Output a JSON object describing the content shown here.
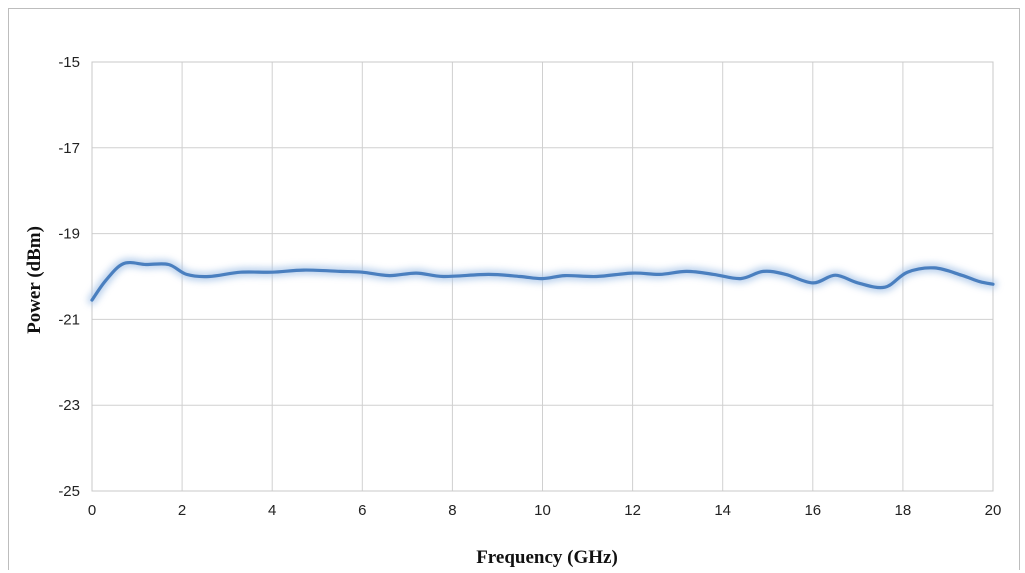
{
  "chart_data": {
    "type": "line",
    "title": "",
    "xlabel": "Frequency (GHz)",
    "ylabel": "Power (dBm)",
    "xlim": [
      0,
      20
    ],
    "ylim": [
      -25,
      -15
    ],
    "xticks": [
      0,
      2,
      4,
      6,
      8,
      10,
      12,
      14,
      16,
      18,
      20
    ],
    "yticks": [
      -25,
      -23,
      -21,
      -19,
      -17,
      -15
    ],
    "xtick_labels": [
      "0",
      "2",
      "4",
      "6",
      "8",
      "10",
      "12",
      "14",
      "16",
      "18",
      "20"
    ],
    "ytick_labels": [
      "-25",
      "-23",
      "-21",
      "-19",
      "-17",
      "-15"
    ],
    "grid": true,
    "legend": "none",
    "series_color": "#4a7fbf",
    "series": [
      {
        "x": [
          0,
          0.3,
          0.7,
          1.2,
          1.7,
          2.1,
          2.6,
          3.3,
          4.0,
          4.7,
          5.5,
          6.0,
          6.6,
          7.2,
          7.8,
          8.8,
          9.5,
          10.0,
          10.5,
          11.2,
          12.0,
          12.6,
          13.2,
          13.8,
          14.4,
          14.9,
          15.4,
          16.0,
          16.5,
          17.0,
          17.6,
          18.1,
          18.7,
          19.3,
          19.7,
          20.0
        ],
        "y": [
          -20.55,
          -20.1,
          -19.7,
          -19.72,
          -19.72,
          -19.95,
          -20.0,
          -19.9,
          -19.9,
          -19.85,
          -19.88,
          -19.9,
          -19.98,
          -19.92,
          -20.0,
          -19.95,
          -20.0,
          -20.05,
          -19.98,
          -20.0,
          -19.92,
          -19.95,
          -19.88,
          -19.95,
          -20.05,
          -19.88,
          -19.95,
          -20.15,
          -19.97,
          -20.15,
          -20.25,
          -19.9,
          -19.8,
          -19.97,
          -20.12,
          -20.18
        ]
      }
    ]
  }
}
